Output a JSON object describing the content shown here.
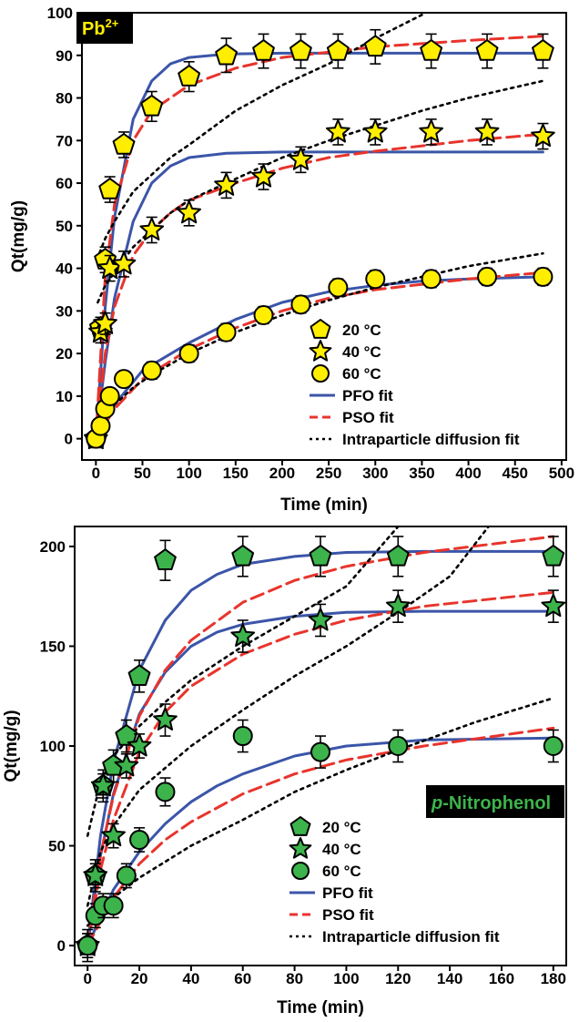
{
  "colors": {
    "pfo": "#3b55a8",
    "pso": "#e8342c",
    "ipd": "#000000",
    "pb_marker": "#ffee00",
    "np_marker": "#3cb44b",
    "tag_bg": "#000000",
    "pb_tag_text": "#ffee00",
    "np_tag_text": "#3cb44b"
  },
  "chart_data": [
    {
      "type": "scatter",
      "tag": {
        "label": "Pb",
        "sup": "2+"
      },
      "xlabel": "Time (min)",
      "ylabel": "Qt(mg/g)",
      "xlim": [
        -15,
        505
      ],
      "ylim": [
        -5,
        100
      ],
      "xticks": [
        0,
        50,
        100,
        150,
        200,
        250,
        300,
        350,
        400,
        450,
        500
      ],
      "yticks": [
        0,
        10,
        20,
        30,
        40,
        50,
        60,
        70,
        80,
        90,
        100
      ],
      "legend_position": "bottom-right",
      "series": [
        {
          "name": "20 °C",
          "marker": "pentagon",
          "x": [
            0,
            5,
            10,
            15,
            30,
            60,
            100,
            140,
            180,
            220,
            260,
            300,
            360,
            420,
            480
          ],
          "y": [
            0,
            26,
            42,
            58.5,
            69,
            78,
            85,
            90,
            91,
            91,
            91,
            92,
            91,
            91,
            91
          ],
          "err": [
            1.5,
            2.5,
            3,
            3,
            3,
            3.5,
            3.5,
            4,
            4,
            4,
            4,
            4,
            4,
            4,
            4
          ]
        },
        {
          "name": "40 °C",
          "marker": "star",
          "x": [
            0,
            5,
            10,
            15,
            30,
            60,
            100,
            140,
            180,
            220,
            260,
            300,
            360,
            420,
            480
          ],
          "y": [
            0,
            25,
            27,
            40,
            41,
            49,
            53,
            59.5,
            61.5,
            65.5,
            72,
            72,
            72,
            72,
            71
          ],
          "err": [
            1.5,
            2.5,
            2.5,
            3,
            3,
            3,
            3,
            3,
            3,
            3,
            3,
            3,
            3,
            3,
            3
          ]
        },
        {
          "name": "60 °C",
          "marker": "circle",
          "x": [
            0,
            5,
            10,
            15,
            30,
            60,
            100,
            140,
            180,
            220,
            260,
            300,
            360,
            420,
            480
          ],
          "y": [
            0,
            3,
            7,
            10,
            14,
            16,
            20,
            25,
            29,
            31.5,
            35.5,
            37.5,
            37.5,
            38,
            38
          ],
          "err": [
            1.5,
            1.5,
            1.5,
            1.5,
            1.5,
            2,
            2,
            2,
            2,
            2,
            2,
            2,
            2,
            2,
            2
          ]
        }
      ],
      "fits": [
        {
          "legend": "PFO fit",
          "style": "pfo",
          "curves": [
            {
              "x": [
                0,
                10,
                20,
                40,
                60,
                80,
                100,
                140,
                200,
                300,
                400,
                480
              ],
              "y": [
                0,
                31,
                52,
                75,
                84,
                88,
                89.5,
                90.3,
                90.5,
                90.5,
                90.5,
                90.5
              ]
            },
            {
              "x": [
                0,
                10,
                20,
                40,
                60,
                80,
                100,
                140,
                200,
                300,
                400,
                480
              ],
              "y": [
                0,
                18,
                33,
                51,
                60,
                64,
                66,
                67,
                67.3,
                67.3,
                67.3,
                67.3
              ]
            },
            {
              "x": [
                0,
                20,
                50,
                100,
                150,
                200,
                250,
                300,
                350,
                400,
                480
              ],
              "y": [
                0,
                8,
                16,
                22.5,
                28,
                32,
                34.5,
                36,
                37,
                37.5,
                38
              ]
            }
          ]
        },
        {
          "legend": "PSO fit",
          "style": "pso",
          "curves": [
            {
              "x": [
                0,
                10,
                20,
                40,
                60,
                80,
                100,
                150,
                200,
                300,
                400,
                480
              ],
              "y": [
                0,
                38,
                55,
                70,
                77,
                80,
                83,
                87,
                89.5,
                92,
                93.5,
                94.5
              ]
            },
            {
              "x": [
                0,
                10,
                20,
                40,
                60,
                80,
                100,
                150,
                200,
                250,
                300,
                400,
                480
              ],
              "y": [
                0,
                20,
                31,
                43,
                49,
                53,
                56,
                60,
                63.5,
                66,
                67.5,
                70,
                71.5
              ]
            },
            {
              "x": [
                0,
                20,
                50,
                100,
                150,
                200,
                250,
                300,
                400,
                480
              ],
              "y": [
                0,
                7,
                14,
                21,
                26,
                30,
                33,
                35,
                37.5,
                39
              ]
            }
          ]
        },
        {
          "legend": "Intraparticle diffusion fit",
          "style": "ipd",
          "curves": [
            {
              "x": [
                1,
                10,
                20,
                40,
                60,
                80,
                100,
                150,
                200,
                250,
                300,
                350
              ],
              "y": [
                42,
                47,
                51,
                58,
                62,
                66,
                69,
                77,
                83,
                88,
                94,
                99.5
              ]
            },
            {
              "x": [
                2,
                10,
                20,
                40,
                60,
                80,
                100,
                150,
                200,
                250,
                300,
                350,
                400,
                450,
                480
              ],
              "y": [
                32,
                36,
                39,
                45,
                49,
                53,
                56,
                61,
                66,
                70,
                73.5,
                77,
                80,
                82.5,
                84
              ]
            },
            {
              "x": [
                20,
                40,
                60,
                100,
                150,
                200,
                250,
                300,
                350,
                400,
                480
              ],
              "y": [
                8,
                12,
                15,
                20,
                25,
                29,
                32.5,
                35.5,
                38,
                40.5,
                43.5
              ]
            }
          ]
        }
      ],
      "legend": {
        "series": [
          "20 °C",
          "40 °C",
          "60 °C"
        ],
        "fits": [
          "PFO fit",
          "PSO fit",
          "Intraparticle diffusion fit"
        ]
      }
    },
    {
      "type": "scatter",
      "tag": {
        "label": "p-Nitrophenol",
        "italic_prefix": "p",
        "rest": "-Nitrophenol"
      },
      "xlabel": "Time (min)",
      "ylabel": "Qt(mg/g)",
      "xlim": [
        -5,
        185
      ],
      "ylim": [
        -10,
        210
      ],
      "xticks": [
        0,
        20,
        40,
        60,
        80,
        100,
        120,
        140,
        160,
        180
      ],
      "yticks": [
        0,
        50,
        100,
        150,
        200
      ],
      "legend_position": "bottom-right",
      "series": [
        {
          "name": "20 °C",
          "marker": "pentagon",
          "x": [
            0,
            3,
            6,
            10,
            15,
            20,
            30,
            60,
            90,
            120,
            180
          ],
          "y": [
            0,
            35,
            80,
            90,
            105,
            135,
            193,
            195,
            195,
            195,
            195
          ],
          "err": [
            8,
            8,
            8,
            8,
            8,
            8,
            10,
            10,
            10,
            10,
            10
          ]
        },
        {
          "name": "40 °C",
          "marker": "star",
          "x": [
            0,
            3,
            6,
            10,
            15,
            20,
            30,
            60,
            90,
            120,
            180
          ],
          "y": [
            0,
            35,
            80,
            55,
            90,
            100,
            113,
            155,
            163,
            170,
            170
          ],
          "err": [
            6,
            6,
            6,
            6,
            6,
            6,
            8,
            8,
            8,
            8,
            8
          ]
        },
        {
          "name": "60 °C",
          "marker": "circle",
          "x": [
            0,
            3,
            6,
            10,
            15,
            20,
            30,
            60,
            90,
            120,
            180
          ],
          "y": [
            0,
            15,
            20,
            20,
            35,
            53,
            77,
            105,
            97,
            100,
            100
          ],
          "err": [
            6,
            6,
            6,
            6,
            6,
            6,
            7,
            8,
            8,
            8,
            8
          ]
        }
      ],
      "fits": [
        {
          "legend": "PFO fit",
          "style": "pfo",
          "curves": [
            {
              "x": [
                0,
                5,
                10,
                20,
                30,
                40,
                50,
                60,
                80,
                100,
                130,
                180
              ],
              "y": [
                0,
                55,
                92,
                138,
                163,
                178,
                186,
                191,
                195,
                197,
                197.5,
                197.5
              ]
            },
            {
              "x": [
                0,
                5,
                10,
                20,
                30,
                40,
                50,
                60,
                80,
                100,
                130,
                180
              ],
              "y": [
                0,
                45,
                76,
                116,
                137,
                150,
                157,
                161,
                165,
                167,
                167.5,
                167.5
              ]
            },
            {
              "x": [
                0,
                10,
                20,
                30,
                40,
                50,
                60,
                80,
                100,
                130,
                180
              ],
              "y": [
                0,
                28,
                47,
                61,
                72,
                80,
                86,
                95,
                100,
                103,
                104
              ]
            }
          ]
        },
        {
          "legend": "PSO fit",
          "style": "pso",
          "curves": [
            {
              "x": [
                0,
                5,
                10,
                20,
                30,
                40,
                60,
                80,
                100,
                130,
                180
              ],
              "y": [
                0,
                45,
                75,
                115,
                138,
                153,
                172,
                183,
                190,
                197,
                205
              ]
            },
            {
              "x": [
                0,
                5,
                10,
                20,
                30,
                40,
                60,
                80,
                100,
                130,
                180
              ],
              "y": [
                0,
                38,
                63,
                97,
                117,
                130,
                146,
                156,
                163,
                170,
                177
              ]
            },
            {
              "x": [
                0,
                10,
                20,
                30,
                40,
                60,
                80,
                100,
                130,
                180
              ],
              "y": [
                0,
                24,
                41,
                53,
                62,
                76,
                86,
                93,
                100,
                109
              ]
            }
          ]
        },
        {
          "legend": "Intraparticle diffusion fit",
          "style": "ipd",
          "curves": [
            {
              "x": [
                0,
                5,
                10,
                20,
                30,
                40,
                60,
                80,
                100,
                120
              ],
              "y": [
                55,
                82,
                95,
                110,
                122,
                133,
                150,
                165,
                180,
                210
              ]
            },
            {
              "x": [
                0,
                5,
                10,
                20,
                40,
                60,
                80,
                100,
                120,
                140,
                155
              ],
              "y": [
                20,
                47,
                60,
                78,
                100,
                118,
                135,
                150,
                167,
                185,
                210
              ]
            },
            {
              "x": [
                0,
                10,
                20,
                40,
                60,
                80,
                100,
                120,
                150,
                180
              ],
              "y": [
                10,
                24,
                34,
                50,
                63,
                77,
                88,
                98,
                112,
                124
              ]
            }
          ]
        }
      ],
      "legend": {
        "series": [
          "20 °C",
          "40 °C",
          "60 °C"
        ],
        "fits": [
          "PFO fit",
          "PSO fit",
          "Intraparticle diffusion fit"
        ]
      }
    }
  ]
}
